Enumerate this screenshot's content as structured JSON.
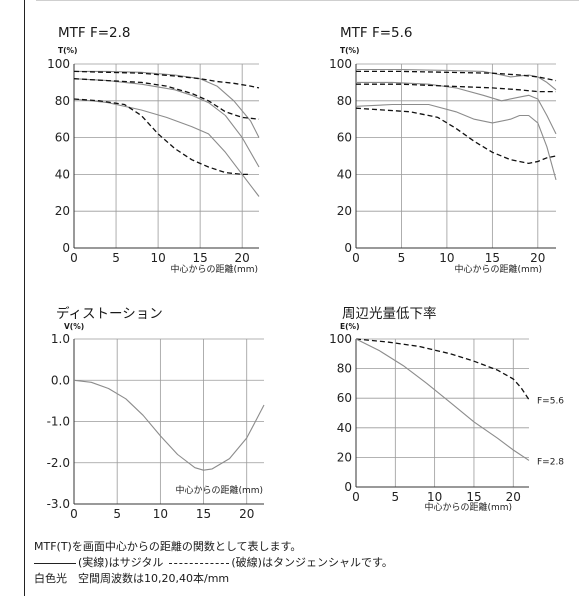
{
  "chart_data": [
    {
      "type": "line",
      "title": "MTF F=2.8",
      "ylabel": "T(%)",
      "xlabel": "中心からの距離(mm)",
      "xlim": [
        0,
        22
      ],
      "ylim": [
        0,
        100
      ],
      "xticks": [
        "0",
        "5",
        "10",
        "15",
        "20"
      ],
      "yticks": [
        "0",
        "20",
        "40",
        "60",
        "80",
        "100"
      ],
      "grid": true,
      "series": [
        {
          "style": "solid",
          "x": [
            0,
            4,
            8,
            12,
            15,
            17,
            19,
            21,
            22
          ],
          "y": [
            96,
            96,
            95.5,
            94,
            92,
            88,
            80,
            69,
            60
          ]
        },
        {
          "style": "dashed",
          "x": [
            0,
            4,
            8,
            12,
            15,
            17,
            19,
            21,
            22
          ],
          "y": [
            96,
            95.5,
            95,
            93.5,
            92,
            90.5,
            89.5,
            88,
            87
          ]
        },
        {
          "style": "solid",
          "x": [
            0,
            4,
            8,
            12,
            14,
            16,
            18,
            20,
            22
          ],
          "y": [
            92,
            91,
            89,
            86,
            83,
            79,
            72,
            60,
            44
          ]
        },
        {
          "style": "dashed",
          "x": [
            0,
            4,
            8,
            11,
            14,
            16,
            18,
            20,
            22
          ],
          "y": [
            92,
            91,
            90,
            88,
            84,
            80,
            74,
            71,
            70
          ]
        },
        {
          "style": "solid",
          "x": [
            0,
            4,
            8,
            11,
            14,
            16,
            18,
            20,
            22
          ],
          "y": [
            81,
            79,
            75,
            71,
            66,
            62,
            52,
            40,
            28
          ]
        },
        {
          "style": "dashed",
          "x": [
            0,
            3,
            6,
            8,
            10,
            12,
            14,
            16,
            18,
            20,
            21
          ],
          "y": [
            81,
            80,
            78,
            72,
            62,
            54,
            48,
            44,
            41,
            40,
            40
          ]
        }
      ]
    },
    {
      "type": "line",
      "title": "MTF F=5.6",
      "ylabel": "T(%)",
      "xlabel": "中心からの距離(mm)",
      "xlim": [
        0,
        22
      ],
      "ylim": [
        0,
        100
      ],
      "xticks": [
        "0",
        "5",
        "10",
        "15",
        "20"
      ],
      "yticks": [
        "0",
        "20",
        "40",
        "60",
        "80",
        "100"
      ],
      "grid": true,
      "series": [
        {
          "style": "solid",
          "x": [
            0,
            5,
            10,
            14,
            16,
            17,
            18,
            19,
            20,
            21,
            22
          ],
          "y": [
            97,
            97,
            96.5,
            96,
            94,
            93,
            93.5,
            94,
            93,
            90,
            86
          ]
        },
        {
          "style": "dashed",
          "x": [
            0,
            5,
            10,
            15,
            18,
            20,
            22
          ],
          "y": [
            96,
            96,
            95.5,
            95,
            94,
            93,
            91
          ]
        },
        {
          "style": "solid",
          "x": [
            0,
            4,
            8,
            11,
            14,
            16,
            18,
            19,
            20,
            21,
            22
          ],
          "y": [
            90,
            90,
            89,
            87,
            83,
            80,
            82,
            83,
            81,
            72,
            62
          ]
        },
        {
          "style": "dashed",
          "x": [
            0,
            5,
            10,
            15,
            18,
            20,
            22
          ],
          "y": [
            89,
            89,
            88,
            87,
            86,
            85,
            85
          ]
        },
        {
          "style": "solid",
          "x": [
            0,
            4,
            8,
            11,
            13,
            15,
            17,
            18,
            19,
            20,
            21,
            22
          ],
          "y": [
            77,
            78,
            78,
            74,
            70,
            68,
            70,
            72,
            72,
            68,
            55,
            37
          ]
        },
        {
          "style": "dashed",
          "x": [
            0,
            3,
            6,
            9,
            11,
            13,
            15,
            17,
            19,
            20,
            21,
            22
          ],
          "y": [
            76,
            75,
            74,
            71,
            65,
            58,
            52,
            48,
            46,
            47,
            49,
            50
          ]
        }
      ]
    },
    {
      "type": "line",
      "title": "ディストーション",
      "ylabel": "V(%)",
      "xlabel": "中心からの距離(mm)",
      "xlim": [
        0,
        22
      ],
      "ylim": [
        -3,
        1
      ],
      "xticks": [
        "0",
        "5",
        "10",
        "15",
        "20"
      ],
      "yticks": [
        "-3.0",
        "-2.0",
        "-1.0",
        "0.0",
        "1.0"
      ],
      "grid": true,
      "series": [
        {
          "style": "solid",
          "x": [
            0,
            2,
            4,
            6,
            8,
            10,
            12,
            14,
            15,
            16,
            18,
            20,
            21,
            22
          ],
          "y": [
            0,
            -0.05,
            -0.2,
            -0.45,
            -0.85,
            -1.35,
            -1.8,
            -2.12,
            -2.18,
            -2.15,
            -1.9,
            -1.4,
            -1.0,
            -0.6
          ]
        }
      ]
    },
    {
      "type": "line",
      "title": "周辺光量低下率",
      "ylabel": "E(%)",
      "xlabel": "中心からの距離(mm)",
      "xlim": [
        0,
        22
      ],
      "ylim": [
        0,
        100
      ],
      "xticks": [
        "0",
        "5",
        "10",
        "15",
        "20"
      ],
      "yticks": [
        "0",
        "20",
        "40",
        "60",
        "80",
        "100"
      ],
      "grid": true,
      "series": [
        {
          "name": "F=5.6",
          "style": "dashed",
          "x": [
            0,
            4,
            8,
            12,
            15,
            18,
            20,
            21,
            22
          ],
          "y": [
            100,
            98,
            95,
            90,
            85,
            79,
            73,
            67,
            59
          ]
        },
        {
          "name": "F=2.8",
          "style": "solid",
          "x": [
            0,
            3,
            6,
            9,
            12,
            15,
            18,
            20,
            22
          ],
          "y": [
            100,
            92,
            82,
            70,
            57,
            44,
            33,
            25,
            18
          ]
        }
      ]
    }
  ],
  "caption": {
    "line1": "MTF(T)を画面中心からの距離の関数として表します。",
    "line2a": "(実線)はサジタル",
    "line2b": "(破線)はタンジェンシャルです。",
    "line3": "白色光　空間周波数は10,20,40本/mm"
  }
}
